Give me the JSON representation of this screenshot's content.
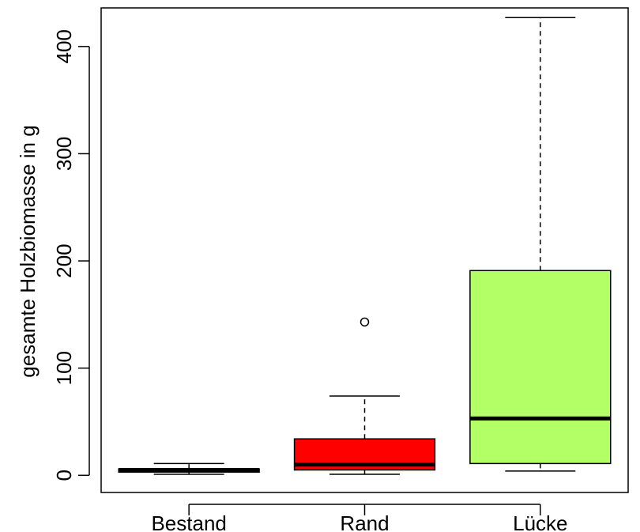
{
  "chart_data": {
    "type": "boxplot",
    "title": "",
    "xlabel": "",
    "ylabel": "gesamte Holzbiomasse in g",
    "ylim": [
      -16,
      436
    ],
    "yticks": [
      0,
      100,
      200,
      300,
      400
    ],
    "ytick_labels": [
      "0",
      "100",
      "200",
      "300",
      "400"
    ],
    "categories": [
      "Bestand",
      "Rand",
      "Lücke"
    ],
    "boxes": [
      {
        "category": "Bestand",
        "min": 1,
        "q1": 3,
        "median": 5,
        "q3": 6,
        "max": 11,
        "outliers": [],
        "fill": "#000000"
      },
      {
        "category": "Rand",
        "min": 1,
        "q1": 5,
        "median": 10,
        "q3": 34,
        "max": 74,
        "outliers": [
          143
        ],
        "fill": "#ff0000"
      },
      {
        "category": "Lücke",
        "min": 4,
        "q1": 11,
        "median": 53,
        "q3": 191,
        "max": 427,
        "outliers": [],
        "fill": "#b3ff66"
      }
    ]
  }
}
